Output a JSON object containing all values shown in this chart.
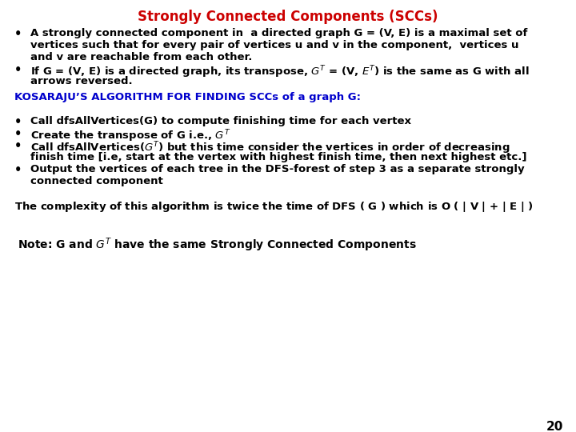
{
  "title": "Strongly Connected Components (SCCs)",
  "title_color": "#CC0000",
  "title_fontsize": 12,
  "bg_color": "#FFFFFF",
  "text_color": "#000000",
  "blue_color": "#0000CC",
  "page_number": "20",
  "fs": 9.5,
  "bullet1_line1": "A strongly connected component in  a directed graph G = (V, E) is a maximal set of",
  "bullet1_line2": "vertices such that for every pair of vertices u and v in the component,  vertices u",
  "bullet1_line3": "and v are reachable from each other.",
  "bullet2_line1": "If G = (V, E) is a directed graph, its transpose, $G^T$ = (V, $E^T$) is the same as G with all",
  "bullet2_line2": "arrows reversed.",
  "kosaraju_header": "KOSARAJU’S ALGORITHM FOR FINDING SCCs of a graph G:",
  "algo_bullet1": "Call dfsAllVertices(G) to compute finishing time for each vertex",
  "algo_bullet2": "Create the transpose of G i.e., $G^T$",
  "algo_bullet3_line1": "Call dfsAllVertices($G^T$) but this time consider the vertices in order of decreasing",
  "algo_bullet3_line2": "finish time [i.e, start at the vertex with highest finish time, then next highest etc.]",
  "algo_bullet4_line1": "Output the vertices of each tree in the DFS-forest of step 3 as a separate strongly",
  "algo_bullet4_line2": "connected component",
  "complexity_line": "The complexity of this algorithm is twice the time of DFS ( G ) which is $\\mathbf{O}$ ( | V | + | E | )",
  "note_line": "$\\bf{Note}$: G and $G^T$ have the same Strongly Connected Components"
}
